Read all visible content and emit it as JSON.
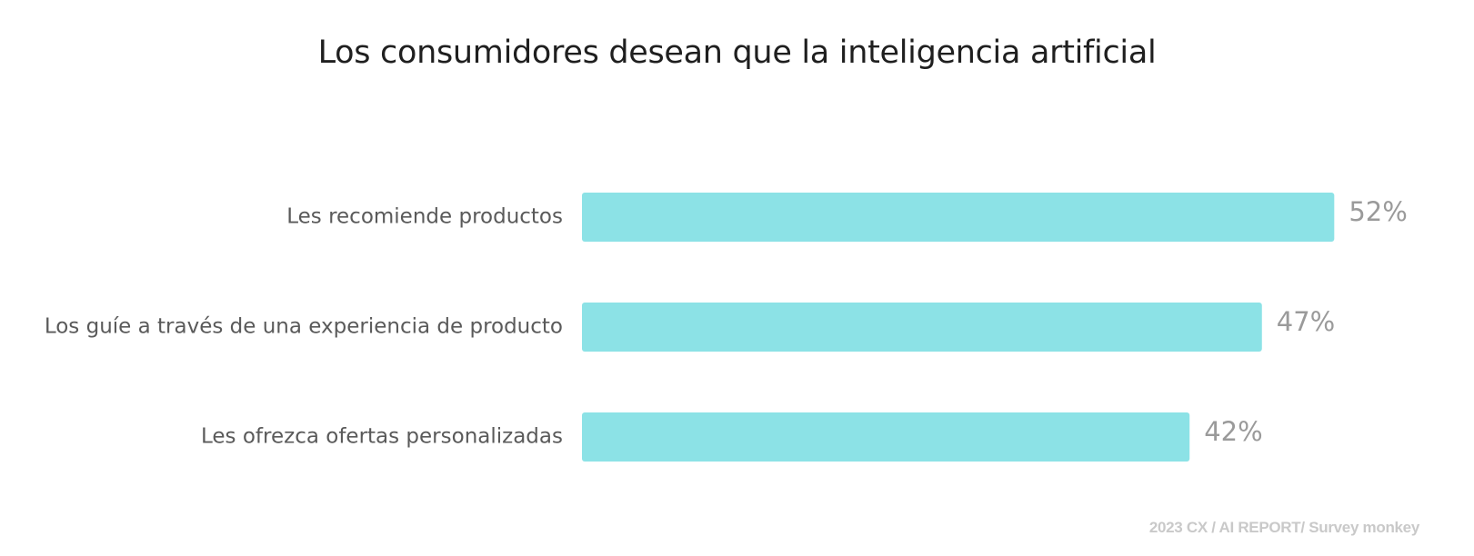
{
  "chart_data": {
    "type": "bar",
    "orientation": "horizontal",
    "title": "Los consumidores desean que la inteligencia artificial",
    "categories": [
      "Les recomiende productos",
      "Los guíe a través de una experiencia de producto",
      "Les ofrezca ofertas personalizadas"
    ],
    "values": [
      52,
      47,
      42
    ],
    "value_labels": [
      "52%",
      "47%",
      "42%"
    ],
    "unit": "%",
    "bar_color": "#8ce2e6",
    "grid": false,
    "legend": "none"
  },
  "source": "2023 CX / AI REPORT/ Survey monkey"
}
